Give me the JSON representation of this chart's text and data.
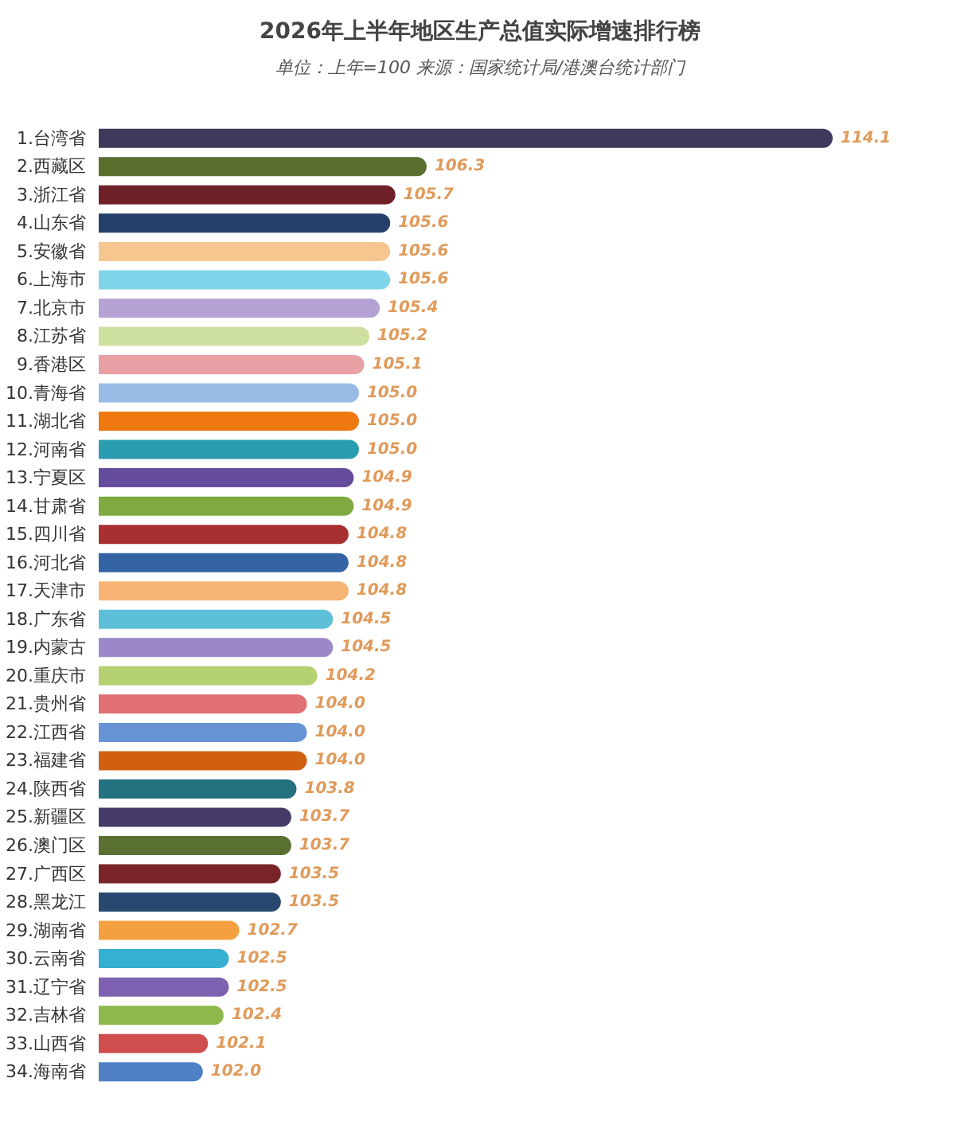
{
  "chart_data": {
    "type": "bar",
    "orientation": "horizontal",
    "title": "2026年上半年地区生产总值实际增速排行榜",
    "subtitle": "单位：上年=100 来源：国家统计局/港澳台统计部门",
    "categories": [
      "1.台湾省",
      "2.西藏区",
      "3.浙江省",
      "4.山东省",
      "5.安徽省",
      "6.上海市",
      "7.北京市",
      "8.江苏省",
      "9.香港区",
      "10.青海省",
      "11.湖北省",
      "12.河南省",
      "13.宁夏区",
      "14.甘肃省",
      "15.四川省",
      "16.河北省",
      "17.天津市",
      "18.广东省",
      "19.内蒙古",
      "20.重庆市",
      "21.贵州省",
      "22.江西省",
      "23.福建省",
      "24.陕西省",
      "25.新疆区",
      "26.澳门区",
      "27.广西区",
      "28.黑龙江",
      "29.湖南省",
      "30.云南省",
      "31.辽宁省",
      "32.吉林省",
      "33.山西省",
      "34.海南省"
    ],
    "values": [
      114.1,
      106.3,
      105.7,
      105.6,
      105.6,
      105.6,
      105.4,
      105.2,
      105.1,
      105.0,
      105.0,
      105.0,
      104.9,
      104.9,
      104.8,
      104.8,
      104.8,
      104.5,
      104.5,
      104.2,
      104.0,
      104.0,
      104.0,
      103.8,
      103.7,
      103.7,
      103.5,
      103.5,
      102.7,
      102.5,
      102.5,
      102.4,
      102.1,
      102.0
    ],
    "value_labels": [
      "114.1",
      "106.3",
      "105.7",
      "105.6",
      "105.6",
      "105.6",
      "105.4",
      "105.2",
      "105.1",
      "105.0",
      "105.0",
      "105.0",
      "104.9",
      "104.9",
      "104.8",
      "104.8",
      "104.8",
      "104.5",
      "104.5",
      "104.2",
      "104.0",
      "104.0",
      "104.0",
      "103.8",
      "103.7",
      "103.7",
      "103.5",
      "103.5",
      "102.7",
      "102.5",
      "102.5",
      "102.4",
      "102.1",
      "102.0"
    ],
    "colors": [
      "#3d3a5c",
      "#5a6e2e",
      "#6e2228",
      "#24406a",
      "#f6c690",
      "#80d4ea",
      "#b4a2d4",
      "#cde0a0",
      "#e8a0a4",
      "#98bce6",
      "#f07810",
      "#2a9cb0",
      "#664c9c",
      "#7eaa40",
      "#a83030",
      "#3564a4",
      "#f8b474",
      "#5ec0d8",
      "#9c88c8",
      "#b4d070",
      "#e07074",
      "#6694d4",
      "#d06010",
      "#23707e",
      "#463a68",
      "#5a7030",
      "#7a2428",
      "#284870",
      "#f4a040",
      "#36b0d0",
      "#7e60b0",
      "#8eb84c",
      "#d04e4e",
      "#5080c4"
    ],
    "xlim": [
      100,
      114.1
    ]
  }
}
